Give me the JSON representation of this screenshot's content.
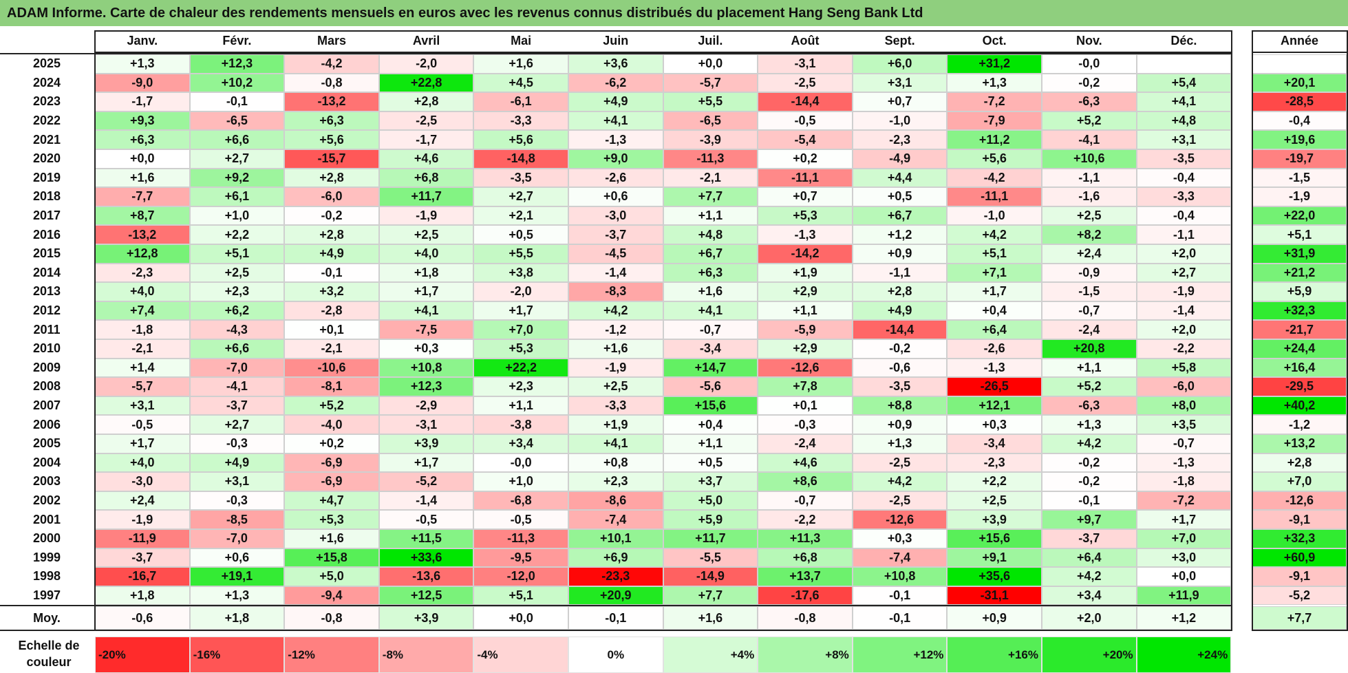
{
  "title": "ADAM Informe. Carte de chaleur des rendements mensuels en euros avec les revenus connus distribués du placement Hang Seng Bank Ltd",
  "chart_data": {
    "type": "heatmap",
    "title": "ADAM Informe. Carte de chaleur des rendements mensuels en euros avec les revenus connus distribués du placement Hang Seng Bank Ltd",
    "months": [
      "Janv.",
      "Févr.",
      "Mars",
      "Avril",
      "Mai",
      "Juin",
      "Juil.",
      "Août",
      "Sept.",
      "Oct.",
      "Nov.",
      "Déc."
    ],
    "year_column_label": "Année",
    "average_row_label": "Moy.",
    "rows": [
      {
        "year": "2025",
        "values": [
          "+1,3",
          "+12,3",
          "-4,2",
          "-2,0",
          "+1,6",
          "+3,6",
          "+0,0",
          "-3,1",
          "+6,0",
          "+31,2",
          "-0,0",
          ""
        ],
        "annual": ""
      },
      {
        "year": "2024",
        "values": [
          "-9,0",
          "+10,2",
          "-0,8",
          "+22,8",
          "+4,5",
          "-6,2",
          "-5,7",
          "-2,5",
          "+3,1",
          "+1,3",
          "-0,2",
          "+5,4"
        ],
        "annual": "+20,1"
      },
      {
        "year": "2023",
        "values": [
          "-1,7",
          "-0,1",
          "-13,2",
          "+2,8",
          "-6,1",
          "+4,9",
          "+5,5",
          "-14,4",
          "+0,7",
          "-7,2",
          "-6,3",
          "+4,1"
        ],
        "annual": "-28,5"
      },
      {
        "year": "2022",
        "values": [
          "+9,3",
          "-6,5",
          "+6,3",
          "-2,5",
          "-3,3",
          "+4,1",
          "-6,5",
          "-0,5",
          "-1,0",
          "-7,9",
          "+5,2",
          "+4,8"
        ],
        "annual": "-0,4"
      },
      {
        "year": "2021",
        "values": [
          "+6,3",
          "+6,6",
          "+5,6",
          "-1,7",
          "+5,6",
          "-1,3",
          "-3,9",
          "-5,4",
          "-2,3",
          "+11,2",
          "-4,1",
          "+3,1"
        ],
        "annual": "+19,6"
      },
      {
        "year": "2020",
        "values": [
          "+0,0",
          "+2,7",
          "-15,7",
          "+4,6",
          "-14,8",
          "+9,0",
          "-11,3",
          "+0,2",
          "-4,9",
          "+5,6",
          "+10,6",
          "-3,5"
        ],
        "annual": "-19,7"
      },
      {
        "year": "2019",
        "values": [
          "+1,6",
          "+9,2",
          "+2,8",
          "+6,8",
          "-3,5",
          "-2,6",
          "-2,1",
          "-11,1",
          "+4,4",
          "-4,2",
          "-1,1",
          "-0,4"
        ],
        "annual": "-1,5"
      },
      {
        "year": "2018",
        "values": [
          "-7,7",
          "+6,1",
          "-6,0",
          "+11,7",
          "+2,7",
          "+0,6",
          "+7,7",
          "+0,7",
          "+0,5",
          "-11,1",
          "-1,6",
          "-3,3"
        ],
        "annual": "-1,9"
      },
      {
        "year": "2017",
        "values": [
          "+8,7",
          "+1,0",
          "-0,2",
          "-1,9",
          "+2,1",
          "-3,0",
          "+1,1",
          "+5,3",
          "+6,7",
          "-1,0",
          "+2,5",
          "-0,4"
        ],
        "annual": "+22,0"
      },
      {
        "year": "2016",
        "values": [
          "-13,2",
          "+2,2",
          "+2,8",
          "+2,5",
          "+0,5",
          "-3,7",
          "+4,8",
          "-1,3",
          "+1,2",
          "+4,2",
          "+8,2",
          "-1,1"
        ],
        "annual": "+5,1"
      },
      {
        "year": "2015",
        "values": [
          "+12,8",
          "+5,1",
          "+4,9",
          "+4,0",
          "+5,5",
          "-4,5",
          "+6,7",
          "-14,2",
          "+0,9",
          "+5,1",
          "+2,4",
          "+2,0"
        ],
        "annual": "+31,9"
      },
      {
        "year": "2014",
        "values": [
          "-2,3",
          "+2,5",
          "-0,1",
          "+1,8",
          "+3,8",
          "-1,4",
          "+6,3",
          "+1,9",
          "-1,1",
          "+7,1",
          "-0,9",
          "+2,7"
        ],
        "annual": "+21,2"
      },
      {
        "year": "2013",
        "values": [
          "+4,0",
          "+2,3",
          "+3,2",
          "+1,7",
          "-2,0",
          "-8,3",
          "+1,6",
          "+2,9",
          "+2,8",
          "+1,7",
          "-1,5",
          "-1,9"
        ],
        "annual": "+5,9"
      },
      {
        "year": "2012",
        "values": [
          "+7,4",
          "+6,2",
          "-2,8",
          "+4,1",
          "+1,7",
          "+4,2",
          "+4,1",
          "+1,1",
          "+4,9",
          "+0,4",
          "-0,7",
          "-1,4"
        ],
        "annual": "+32,3"
      },
      {
        "year": "2011",
        "values": [
          "-1,8",
          "-4,3",
          "+0,1",
          "-7,5",
          "+7,0",
          "-1,2",
          "-0,7",
          "-5,9",
          "-14,4",
          "+6,4",
          "-2,4",
          "+2,0"
        ],
        "annual": "-21,7"
      },
      {
        "year": "2010",
        "values": [
          "-2,1",
          "+6,6",
          "-2,1",
          "+0,3",
          "+5,3",
          "+1,6",
          "-3,4",
          "+2,9",
          "-0,2",
          "-2,6",
          "+20,8",
          "-2,2"
        ],
        "annual": "+24,4"
      },
      {
        "year": "2009",
        "values": [
          "+1,4",
          "-7,0",
          "-10,6",
          "+10,8",
          "+22,2",
          "-1,9",
          "+14,7",
          "-12,6",
          "-0,6",
          "-1,3",
          "+1,1",
          "+5,8"
        ],
        "annual": "+16,4"
      },
      {
        "year": "2008",
        "values": [
          "-5,7",
          "-4,1",
          "-8,1",
          "+12,3",
          "+2,3",
          "+2,5",
          "-5,6",
          "+7,8",
          "-3,5",
          "-26,5",
          "+5,2",
          "-6,0"
        ],
        "annual": "-29,5"
      },
      {
        "year": "2007",
        "values": [
          "+3,1",
          "-3,7",
          "+5,2",
          "-2,9",
          "+1,1",
          "-3,3",
          "+15,6",
          "+0,1",
          "+8,8",
          "+12,1",
          "-6,3",
          "+8,0"
        ],
        "annual": "+40,2"
      },
      {
        "year": "2006",
        "values": [
          "-0,5",
          "+2,7",
          "-4,0",
          "-3,1",
          "-3,8",
          "+1,9",
          "+0,4",
          "-0,3",
          "+0,9",
          "+0,3",
          "+1,3",
          "+3,5"
        ],
        "annual": "-1,2"
      },
      {
        "year": "2005",
        "values": [
          "+1,7",
          "-0,3",
          "+0,2",
          "+3,9",
          "+3,4",
          "+4,1",
          "+1,1",
          "-2,4",
          "+1,3",
          "-3,4",
          "+4,2",
          "-0,7"
        ],
        "annual": "+13,2"
      },
      {
        "year": "2004",
        "values": [
          "+4,0",
          "+4,9",
          "-6,9",
          "+1,7",
          "-0,0",
          "+0,8",
          "+0,5",
          "+4,6",
          "-2,5",
          "-2,3",
          "-0,2",
          "-1,3"
        ],
        "annual": "+2,8"
      },
      {
        "year": "2003",
        "values": [
          "-3,0",
          "+3,1",
          "-6,9",
          "-5,2",
          "+1,0",
          "+2,3",
          "+3,7",
          "+8,6",
          "+4,2",
          "+2,2",
          "-0,2",
          "-1,8"
        ],
        "annual": "+7,0"
      },
      {
        "year": "2002",
        "values": [
          "+2,4",
          "-0,3",
          "+4,7",
          "-1,4",
          "-6,8",
          "-8,6",
          "+5,0",
          "-0,7",
          "-2,5",
          "+2,5",
          "-0,1",
          "-7,2"
        ],
        "annual": "-12,6"
      },
      {
        "year": "2001",
        "values": [
          "-1,9",
          "-8,5",
          "+5,3",
          "-0,5",
          "-0,5",
          "-7,4",
          "+5,9",
          "-2,2",
          "-12,6",
          "+3,9",
          "+9,7",
          "+1,7"
        ],
        "annual": "-9,1"
      },
      {
        "year": "2000",
        "values": [
          "-11,9",
          "-7,0",
          "+1,6",
          "+11,5",
          "-11,3",
          "+10,1",
          "+11,7",
          "+11,3",
          "+0,3",
          "+15,6",
          "-3,7",
          "+7,0"
        ],
        "annual": "+32,3"
      },
      {
        "year": "1999",
        "values": [
          "-3,7",
          "+0,6",
          "+15,8",
          "+33,6",
          "-9,5",
          "+6,9",
          "-5,5",
          "+6,8",
          "-7,4",
          "+9,1",
          "+6,4",
          "+3,0"
        ],
        "annual": "+60,9"
      },
      {
        "year": "1998",
        "values": [
          "-16,7",
          "+19,1",
          "+5,0",
          "-13,6",
          "-12,0",
          "-23,3",
          "-14,9",
          "+13,7",
          "+10,8",
          "+35,6",
          "+4,2",
          "+0,0"
        ],
        "annual": "-9,1"
      },
      {
        "year": "1997",
        "values": [
          "+1,8",
          "+1,3",
          "-9,4",
          "+12,5",
          "+5,1",
          "+20,9",
          "+7,7",
          "-17,6",
          "-0,1",
          "-31,1",
          "+3,4",
          "+11,9"
        ],
        "annual": "-5,2"
      }
    ],
    "average": {
      "values": [
        "-0,6",
        "+1,8",
        "-0,8",
        "+3,9",
        "+0,0",
        "-0,1",
        "+1,6",
        "-0,8",
        "-0,1",
        "+0,9",
        "+2,0",
        "+1,2"
      ],
      "annual": "+7,7"
    },
    "color_scale_label": "Echelle de couleur",
    "color_scale": [
      {
        "label": "-20%",
        "value": -20
      },
      {
        "label": "-16%",
        "value": -16
      },
      {
        "label": "-12%",
        "value": -12
      },
      {
        "label": "-8%",
        "value": -8
      },
      {
        "label": "-4%",
        "value": -4
      },
      {
        "label": "0%",
        "value": 0
      },
      {
        "label": "+4%",
        "value": 4
      },
      {
        "label": "+8%",
        "value": 8
      },
      {
        "label": "+12%",
        "value": 12
      },
      {
        "label": "+16%",
        "value": 16
      },
      {
        "label": "+20%",
        "value": 20
      },
      {
        "label": "+24%",
        "value": 24
      }
    ],
    "colors": {
      "negative_max": "#ff0000",
      "neutral": "#ffffff",
      "positive_max": "#00e600"
    }
  }
}
